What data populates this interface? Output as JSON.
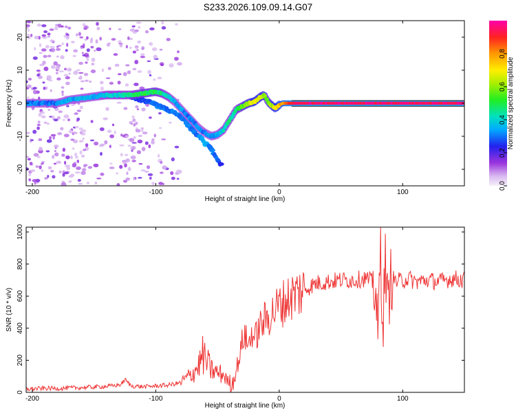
{
  "title": "S233.2026.109.09.14.G07",
  "chart_data": [
    {
      "type": "heatmap",
      "xlabel": "Height of straight line (km)",
      "ylabel": "Frequency (Hz)",
      "xlim": [
        -205,
        150
      ],
      "ylim": [
        -25,
        25
      ],
      "xticks": [
        -200,
        -100,
        0,
        100
      ],
      "xtick_labels": [
        "-200",
        "-100",
        "0",
        "100"
      ],
      "yticks": [
        -20,
        -10,
        0,
        10,
        20
      ],
      "ytick_labels": [
        "-20",
        "-10",
        "0",
        "10",
        "20"
      ],
      "colorbar": {
        "label": "Normalized spectral amplitude",
        "range": [
          0,
          1
        ],
        "ticks": [
          0.0,
          0.2,
          0.4,
          0.6,
          0.8
        ],
        "tick_labels": [
          "0.0",
          "0.2",
          "0.4",
          "0.6",
          "0.8"
        ]
      },
      "ridge": {
        "x": [
          -205,
          -190,
          -180,
          -170,
          -160,
          -150,
          -140,
          -130,
          -120,
          -110,
          -100,
          -95,
          -90,
          -85,
          -80,
          -75,
          -70,
          -65,
          -60,
          -55,
          -50,
          -45,
          -40,
          -35,
          -30,
          -25,
          -20,
          -15,
          -12,
          -10,
          -8,
          -5,
          -3,
          0,
          3,
          10,
          20,
          40,
          60,
          80,
          100,
          120,
          150
        ],
        "y": [
          0,
          0,
          0,
          1,
          1.5,
          2,
          2.5,
          2.5,
          2.5,
          3,
          3.5,
          3,
          2,
          0.5,
          -1.5,
          -3.5,
          -5.5,
          -7.5,
          -9,
          -10,
          -9.5,
          -8,
          -5,
          -2,
          -1,
          0,
          0.5,
          2,
          2.5,
          1,
          0,
          -1,
          -1.5,
          -0.5,
          0,
          0,
          0,
          0,
          0,
          0,
          0,
          0,
          0
        ],
        "amplitude": [
          0.3,
          0.3,
          0.3,
          0.35,
          0.35,
          0.35,
          0.4,
          0.4,
          0.45,
          0.5,
          0.5,
          0.45,
          0.4,
          0.35,
          0.35,
          0.3,
          0.3,
          0.3,
          0.3,
          0.35,
          0.35,
          0.4,
          0.45,
          0.45,
          0.55,
          0.6,
          0.7,
          0.65,
          0.6,
          0.55,
          0.6,
          0.65,
          0.7,
          0.75,
          0.8,
          0.9,
          0.95,
          0.95,
          0.95,
          0.95,
          0.95,
          0.95,
          0.95
        ]
      },
      "branch": {
        "x": [
          -120,
          -110,
          -100,
          -90,
          -80,
          -75,
          -70,
          -65,
          -60,
          -55,
          -52,
          -50,
          -47
        ],
        "y": [
          2,
          1,
          -0.5,
          -2,
          -4,
          -6,
          -8,
          -10,
          -12,
          -14,
          -16,
          -17,
          -18.5
        ],
        "amplitude": [
          0.25,
          0.25,
          0.3,
          0.3,
          0.3,
          0.3,
          0.3,
          0.3,
          0.35,
          0.3,
          0.3,
          0.3,
          0.25
        ]
      }
    },
    {
      "type": "line",
      "xlabel": "Height of straight line (km)",
      "ylabel": "SNR (10 * v/v)",
      "xlim": [
        -205,
        150
      ],
      "ylim": [
        0,
        1030
      ],
      "xticks": [
        -200,
        -100,
        0,
        100
      ],
      "xtick_labels": [
        "-200",
        "-100",
        "0",
        "100"
      ],
      "yticks": [
        0,
        200,
        400,
        600,
        800,
        1000
      ],
      "ytick_labels": [
        "0",
        "200",
        "400",
        "600",
        "800",
        "1000"
      ],
      "series": [
        {
          "name": "SNR",
          "color": "#ee3333",
          "x": [
            -205,
            -190,
            -175,
            -160,
            -145,
            -135,
            -128,
            -125,
            -120,
            -110,
            -100,
            -90,
            -80,
            -75,
            -70,
            -65,
            -62,
            -58,
            -55,
            -50,
            -45,
            -42,
            -38,
            -35,
            -32,
            -30,
            -28,
            -25,
            -22,
            -20,
            -15,
            -10,
            -5,
            0,
            5,
            10,
            20,
            30,
            40,
            50,
            60,
            70,
            75,
            78,
            80,
            82,
            84,
            86,
            88,
            90,
            95,
            100,
            105,
            110,
            120,
            130,
            140,
            150
          ],
          "y": [
            20,
            25,
            25,
            30,
            35,
            40,
            50,
            80,
            40,
            35,
            40,
            45,
            60,
            90,
            120,
            170,
            230,
            180,
            140,
            120,
            110,
            70,
            50,
            140,
            220,
            320,
            360,
            290,
            380,
            330,
            420,
            460,
            500,
            540,
            570,
            600,
            640,
            680,
            690,
            700,
            700,
            710,
            690,
            650,
            300,
            950,
            400,
            850,
            480,
            720,
            690,
            700,
            710,
            690,
            700,
            690,
            710,
            700
          ]
        }
      ]
    }
  ]
}
